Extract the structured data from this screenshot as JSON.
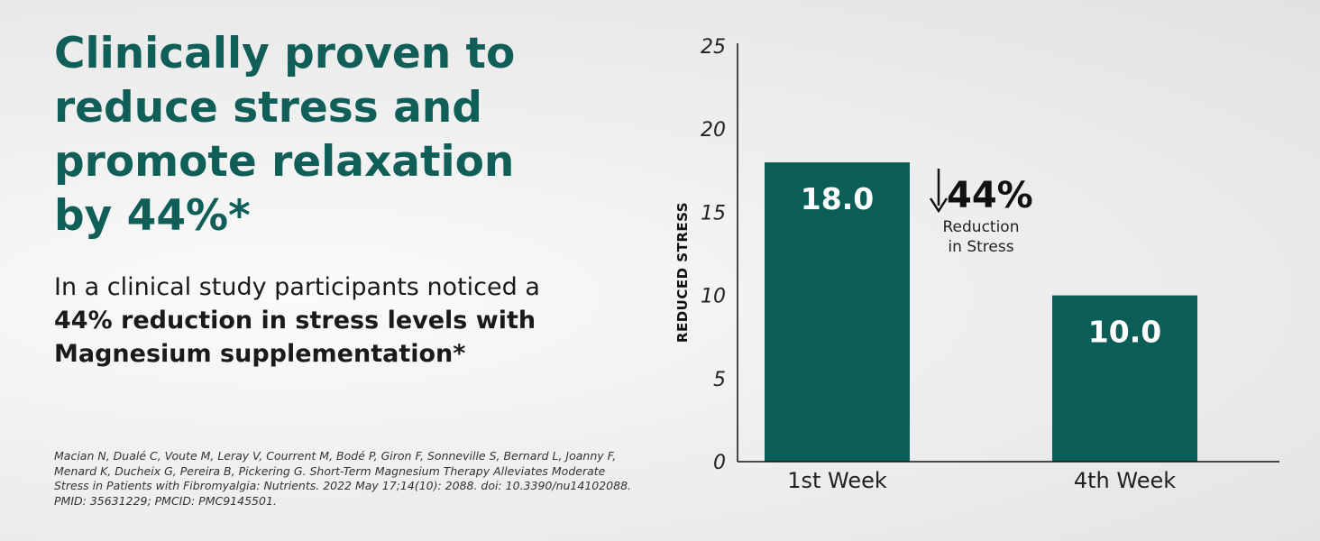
{
  "headline": "Clinically proven to reduce stress and promote relaxation by 44%*",
  "body": {
    "intro": "In a clinical study participants noticed a ",
    "emphasis": "44% reduction in stress levels with Magnesium supplementation*"
  },
  "citation": "Macian N, Dualé C, Voute M, Leray V, Courrent M, Bodé P, Giron F, Sonneville S, Bernard L, Joanny F, Menard K, Ducheix G, Pereira B, Pickering G. Short-Term Magnesium Therapy Alleviates Moderate Stress in Patients with Fibromyalgia: Nutrients. 2022 May 17;14(10): 2088. doi: 10.3390/nu14102088. PMID: 35631229; PMCID: PMC9145501.",
  "colors": {
    "bar": "#0b5e58",
    "headline": "#0f5e57"
  },
  "chart_data": {
    "type": "bar",
    "categories": [
      "1st Week",
      "4th Week"
    ],
    "values": [
      18.0,
      10.0
    ],
    "value_labels": [
      "18.0",
      "10.0"
    ],
    "ylabel": "REDUCED STRESS",
    "ylim": [
      0,
      25
    ],
    "yticks": [
      0,
      5,
      10,
      15,
      20,
      25
    ],
    "grid": false,
    "annotation": {
      "arrow": "down-arrow-icon",
      "value": "44%",
      "line1": "Reduction",
      "line2": "in Stress"
    }
  }
}
